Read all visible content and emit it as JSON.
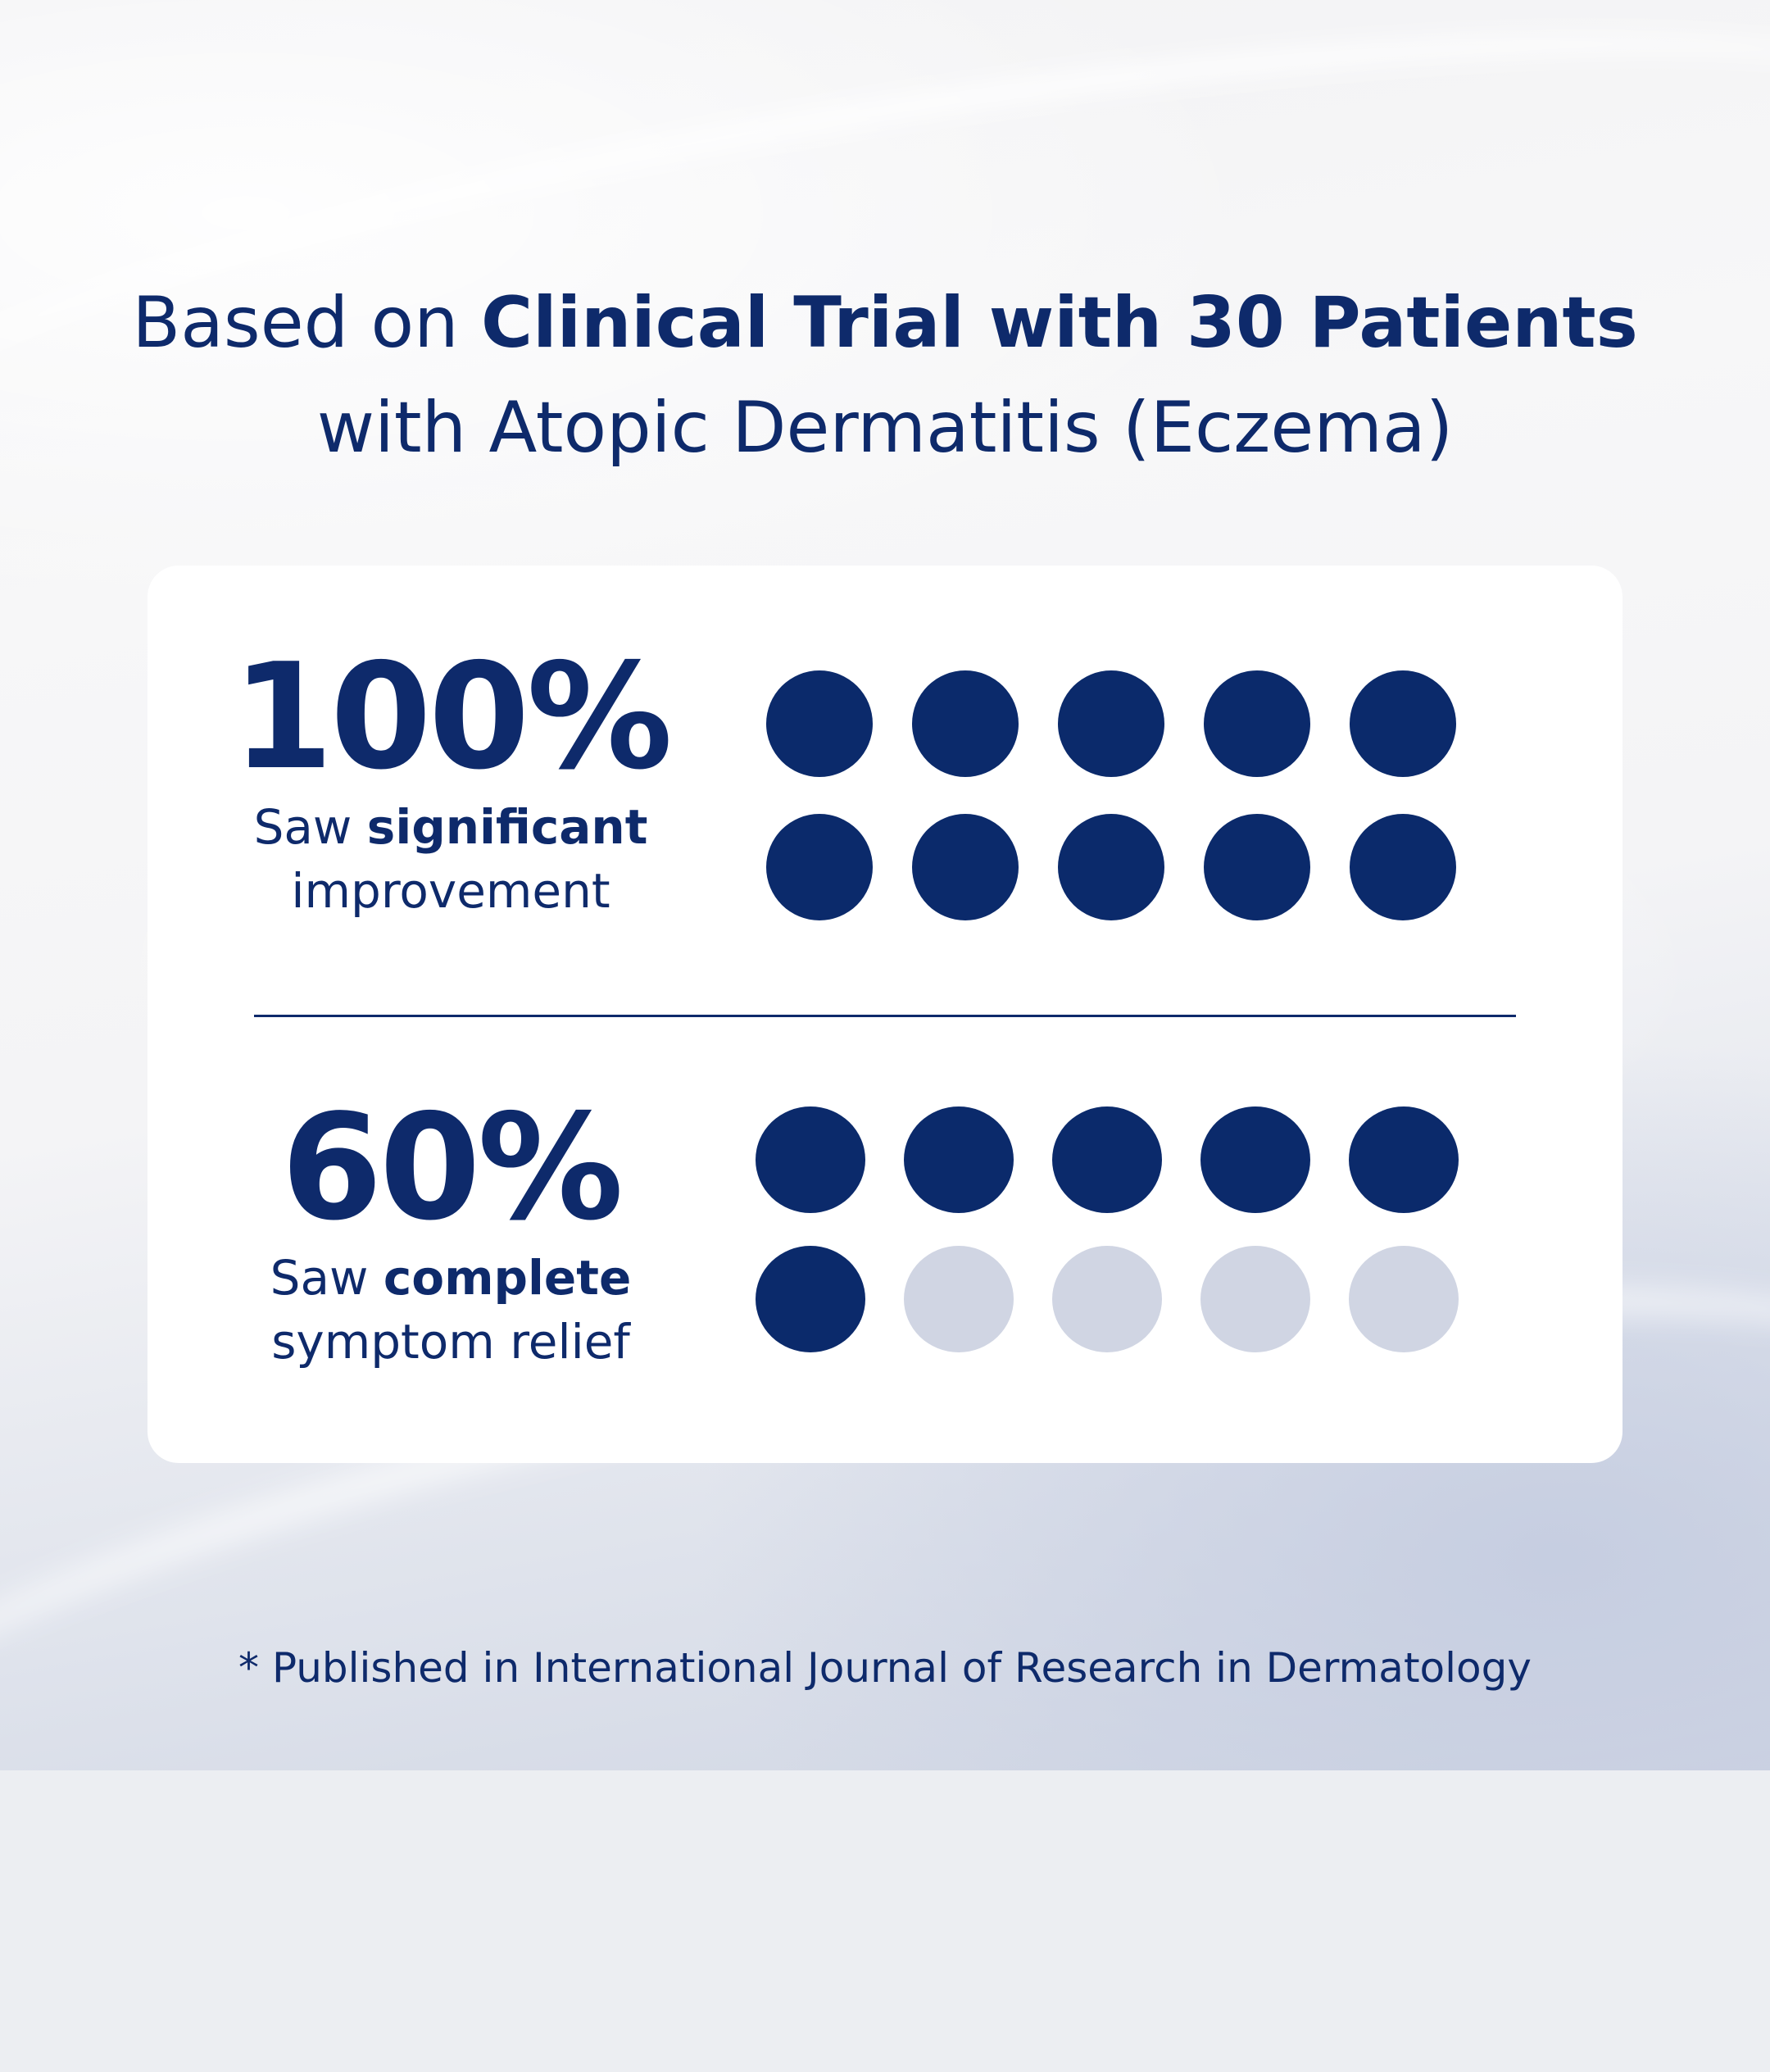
{
  "headline": {
    "line1_regular": "Based on ",
    "line1_bold": "Clinical Trial with 30 Patients",
    "line2": "with Atopic Dermatitis (Eczema)"
  },
  "stats": [
    {
      "value": "100%",
      "desc_prefix": "Saw ",
      "desc_bold": "significant",
      "desc_line2": "improvement",
      "filled": 10,
      "total": 10
    },
    {
      "value": "60%",
      "desc_prefix": "Saw ",
      "desc_bold": "complete",
      "desc_line2": "symptom relief",
      "filled": 6,
      "total": 10
    }
  ],
  "footnote": "* Published in International Journal of Research in Dermatology",
  "colors": {
    "navy": "#0b2a6b",
    "dot_inactive": "#d0d5e3"
  }
}
